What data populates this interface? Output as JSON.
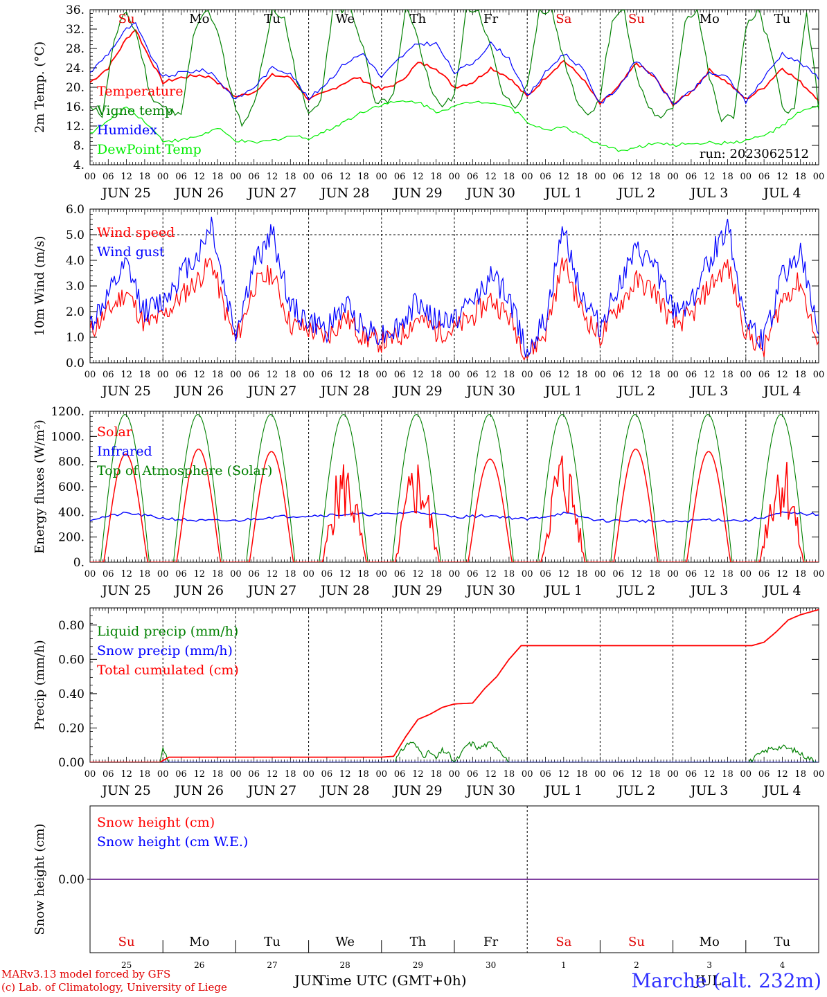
{
  "run_label": "run: 2023062512",
  "hour_ticks": [
    "00",
    "06",
    "12",
    "18"
  ],
  "day_dates": [
    "JUN 25",
    "JUN 26",
    "JUN 27",
    "JUN 28",
    "JUN 29",
    "JUN 30",
    "JUL  1",
    "JUL  2",
    "JUL  3",
    "JUL  4"
  ],
  "weekdays": [
    "Su",
    "Mo",
    "Tu",
    "We",
    "Th",
    "Fr",
    "Sa",
    "Su",
    "Mo",
    "Tu"
  ],
  "weekday_colors": [
    "#e00000",
    "#000000",
    "#000000",
    "#000000",
    "#000000",
    "#000000",
    "#e00000",
    "#e00000",
    "#000000",
    "#000000"
  ],
  "bottom_day_numbers": [
    "25",
    "26",
    "27",
    "28",
    "29",
    "30",
    "1",
    "2",
    "3",
    "4"
  ],
  "footer": {
    "credit_line1": "MARv3.13 model forced by GFS",
    "credit_line2": "(c) Lab. of Climatology, University of Liege",
    "month_left": "JUN",
    "month_right": "JUL",
    "xlabel": "Time UTC (GMT+0h)",
    "station": "Marche (alt. 232m)"
  },
  "chart_data": [
    {
      "type": "line",
      "ylabel": "2m Temp. (°C)",
      "ylim": [
        4,
        36
      ],
      "yticks": [
        "4.",
        "8.",
        "12.",
        "16.",
        "20.",
        "24.",
        "28.",
        "32.",
        "36."
      ],
      "x_unit": "hours since JUN 25 00 UTC",
      "series": [
        {
          "name": "Temperature",
          "color": "#ff0000",
          "x": [
            0,
            6,
            12,
            15,
            18,
            24,
            30,
            36,
            40,
            48,
            54,
            60,
            66,
            72,
            78,
            84,
            88,
            96,
            102,
            108,
            114,
            120,
            126,
            132,
            138,
            144,
            150,
            156,
            162,
            168,
            174,
            180,
            186,
            192,
            198,
            204,
            210,
            216,
            222,
            228,
            234,
            240
          ],
          "y": [
            21,
            24,
            30,
            32,
            28,
            21,
            22,
            22.5,
            22,
            18,
            19,
            22.5,
            22,
            17.5,
            19,
            21,
            22,
            19.5,
            21,
            25,
            24,
            20,
            21,
            24,
            22,
            18,
            22,
            25.5,
            22,
            16.5,
            20,
            25,
            22,
            16.5,
            19,
            23.5,
            21,
            17.5,
            20,
            24,
            21,
            17.5
          ]
        },
        {
          "name": "Vigne temp",
          "color": "#008000",
          "x": [
            0,
            4,
            8,
            12,
            16,
            20,
            24,
            30,
            34,
            38,
            42,
            46,
            50,
            54,
            60,
            64,
            68,
            72,
            76,
            80,
            86,
            90,
            94,
            100,
            104,
            108,
            112,
            116,
            120,
            124,
            128,
            132,
            136,
            140,
            144,
            148,
            152,
            156,
            160,
            164,
            168,
            172,
            176,
            180,
            184,
            188,
            192,
            196,
            200,
            204,
            208,
            212,
            216,
            220,
            224,
            228,
            232,
            236,
            240
          ],
          "y": [
            16,
            14,
            30,
            36,
            30,
            18,
            16,
            14,
            30,
            36,
            32,
            20,
            12,
            16,
            36,
            34,
            22,
            14,
            18,
            36,
            36,
            28,
            16,
            18,
            36,
            30,
            20,
            16,
            18,
            36,
            36,
            28,
            18,
            16,
            20,
            36,
            36,
            26,
            18,
            14,
            18,
            34,
            36,
            22,
            16,
            13,
            16,
            34,
            36,
            22,
            13,
            14,
            32,
            36,
            28,
            16,
            15,
            36,
            16
          ]
        },
        {
          "name": "Humidex",
          "color": "#0000ff",
          "x": [
            0,
            6,
            12,
            15,
            18,
            24,
            30,
            36,
            40,
            48,
            54,
            60,
            66,
            72,
            78,
            84,
            90,
            96,
            102,
            108,
            114,
            120,
            126,
            132,
            138,
            144,
            150,
            156,
            162,
            168,
            174,
            180,
            186,
            192,
            198,
            204,
            210,
            216,
            222,
            228,
            234,
            240
          ],
          "y": [
            23,
            27,
            32,
            33,
            29,
            22,
            23,
            23.5,
            23,
            17.5,
            20,
            24,
            23,
            17.5,
            21,
            25,
            27,
            22,
            26,
            29,
            29,
            23,
            25,
            29,
            26,
            18,
            23,
            27,
            24,
            16.5,
            20,
            25.5,
            22,
            16.5,
            19,
            23,
            22,
            17,
            22,
            27,
            25,
            22
          ]
        },
        {
          "name": "DewPoint Temp",
          "color": "#00ee00",
          "x": [
            0,
            6,
            12,
            18,
            24,
            30,
            36,
            42,
            48,
            54,
            60,
            66,
            72,
            78,
            84,
            90,
            96,
            102,
            108,
            114,
            120,
            126,
            132,
            138,
            144,
            150,
            156,
            162,
            168,
            174,
            180,
            186,
            192,
            198,
            204,
            210,
            216,
            222,
            228,
            234,
            240
          ],
          "y": [
            10.5,
            13,
            16,
            13,
            9,
            9,
            10,
            11.5,
            9,
            8.5,
            9,
            10,
            9.5,
            11,
            13,
            15,
            16.5,
            17,
            17,
            15,
            16,
            17,
            17,
            16,
            13,
            11,
            12,
            10,
            8,
            7,
            7.5,
            8.5,
            8,
            8.5,
            8.5,
            8.5,
            9,
            10,
            12,
            15,
            16
          ]
        }
      ]
    },
    {
      "type": "line",
      "ylabel": "10m Wind (m/s)",
      "ylim": [
        0,
        6
      ],
      "yticks": [
        "0.0",
        "1.0",
        "2.0",
        "3.0",
        "4.0",
        "5.0",
        "6.0"
      ],
      "x_unit": "hours since JUN 25 00 UTC",
      "series": [
        {
          "name": "Wind speed",
          "color": "#ff0000",
          "x": [
            0,
            6,
            12,
            18,
            24,
            30,
            36,
            40,
            44,
            48,
            54,
            60,
            66,
            72,
            78,
            84,
            90,
            96,
            102,
            108,
            114,
            120,
            126,
            132,
            138,
            144,
            150,
            156,
            162,
            168,
            174,
            180,
            186,
            192,
            198,
            204,
            210,
            216,
            222,
            228,
            234,
            240
          ],
          "y": [
            1.2,
            2.0,
            2.8,
            1.5,
            1.8,
            2.6,
            3.3,
            4.0,
            2.2,
            0.8,
            3.0,
            3.5,
            1.5,
            1.3,
            1.0,
            1.8,
            1.0,
            0.8,
            1.0,
            1.8,
            1.2,
            1.3,
            1.8,
            2.5,
            1.8,
            0.3,
            1.2,
            4.0,
            2.0,
            1.0,
            2.2,
            3.2,
            2.8,
            1.5,
            1.8,
            3.0,
            3.8,
            1.2,
            0.5,
            2.5,
            3.2,
            0.5
          ]
        },
        {
          "name": "Wind gust",
          "color": "#0000ff",
          "x": [
            0,
            6,
            12,
            18,
            24,
            30,
            36,
            40,
            44,
            48,
            54,
            60,
            66,
            72,
            78,
            84,
            90,
            96,
            102,
            108,
            114,
            120,
            126,
            132,
            138,
            144,
            150,
            156,
            162,
            168,
            174,
            180,
            186,
            192,
            198,
            204,
            210,
            216,
            222,
            228,
            234,
            240
          ],
          "y": [
            1.5,
            2.6,
            3.8,
            2.0,
            2.4,
            3.5,
            4.3,
            5.5,
            3.0,
            1.2,
            3.8,
            5.1,
            2.2,
            1.6,
            1.3,
            2.3,
            1.4,
            1.1,
            1.4,
            2.4,
            1.6,
            1.7,
            2.4,
            3.4,
            2.5,
            0.5,
            1.6,
            5.3,
            2.6,
            1.4,
            3.0,
            4.3,
            3.8,
            2.0,
            2.4,
            4.0,
            5.4,
            1.6,
            0.8,
            3.4,
            4.3,
            1.0
          ]
        }
      ]
    },
    {
      "type": "line",
      "ylabel": "Energy fluxes (W/m²)",
      "ylim": [
        0,
        1200
      ],
      "yticks": [
        "0.",
        "200.",
        "400.",
        "600.",
        "800.",
        "1000.",
        "1200."
      ],
      "x_unit": "hours since JUN 25 00 UTC",
      "daily_peaks": {
        "solar": [
          860,
          900,
          880,
          780,
          800,
          820,
          870,
          900,
          880,
          860
        ],
        "top_of_atmosphere": [
          1175,
          1175,
          1175,
          1175,
          1175,
          1175,
          1175,
          1175,
          1175,
          1175
        ]
      },
      "series": [
        {
          "name": "Solar",
          "color": "#ff0000"
        },
        {
          "name": "Infrared",
          "color": "#0000ff",
          "x": [
            0,
            12,
            24,
            36,
            48,
            60,
            72,
            84,
            96,
            108,
            120,
            132,
            144,
            156,
            168,
            180,
            192,
            204,
            216,
            228,
            240
          ],
          "y": [
            340,
            390,
            350,
            330,
            330,
            360,
            370,
            380,
            380,
            400,
            360,
            370,
            340,
            390,
            330,
            330,
            320,
            340,
            330,
            390,
            380
          ]
        },
        {
          "name": "Top of Atmosphere (Solar)",
          "color": "#008000"
        }
      ]
    },
    {
      "type": "line",
      "ylabel": "Precip (mm/h)",
      "ylim": [
        0,
        0.9
      ],
      "yticks": [
        "0.00",
        "0.20",
        "0.40",
        "0.60",
        "0.80"
      ],
      "x_unit": "hours since JUN 25 00 UTC",
      "series": [
        {
          "name": "Liquid precip (mm/h)",
          "color": "#008000",
          "x": [
            0,
            23,
            24,
            25,
            26,
            100,
            102,
            104,
            106,
            108,
            110,
            112,
            114,
            116,
            118,
            120,
            122,
            124,
            126,
            128,
            130,
            132,
            134,
            136,
            138,
            140,
            217,
            220,
            224,
            228,
            232,
            236,
            240
          ],
          "y": [
            0,
            0,
            0.08,
            0.05,
            0,
            0,
            0.05,
            0.1,
            0.12,
            0.08,
            0.04,
            0.06,
            0.02,
            0.07,
            0.05,
            0,
            0.04,
            0.1,
            0.11,
            0.08,
            0.1,
            0.11,
            0.09,
            0.05,
            0,
            0,
            0,
            0.04,
            0.08,
            0.09,
            0.07,
            0.03,
            0
          ]
        },
        {
          "name": "Snow precip (mm/h)",
          "color": "#0000ff",
          "x": [
            0,
            240
          ],
          "y": [
            0,
            0
          ]
        },
        {
          "name": "Total cumulated (cm)",
          "color": "#ff0000",
          "x": [
            0,
            23,
            26,
            96,
            100,
            104,
            108,
            112,
            116,
            120,
            126,
            130,
            134,
            138,
            142,
            218,
            222,
            226,
            230,
            234,
            240
          ],
          "y": [
            0,
            0,
            0.03,
            0.03,
            0.035,
            0.15,
            0.25,
            0.28,
            0.32,
            0.34,
            0.345,
            0.43,
            0.5,
            0.6,
            0.68,
            0.68,
            0.7,
            0.76,
            0.83,
            0.86,
            0.89
          ]
        }
      ]
    },
    {
      "type": "line",
      "ylabel": "Snow height (cm)",
      "ylim": [
        -1,
        1
      ],
      "yticks": [
        "0.00"
      ],
      "x_unit": "hours since JUN 25 00 UTC",
      "series": [
        {
          "name": "Snow height (cm)",
          "color": "#ff0000",
          "x": [
            0,
            240
          ],
          "y": [
            0,
            0
          ]
        },
        {
          "name": "Snow height (cm W.E.)",
          "color": "#0000ff",
          "x": [
            0,
            240
          ],
          "y": [
            0,
            0
          ]
        }
      ]
    }
  ]
}
